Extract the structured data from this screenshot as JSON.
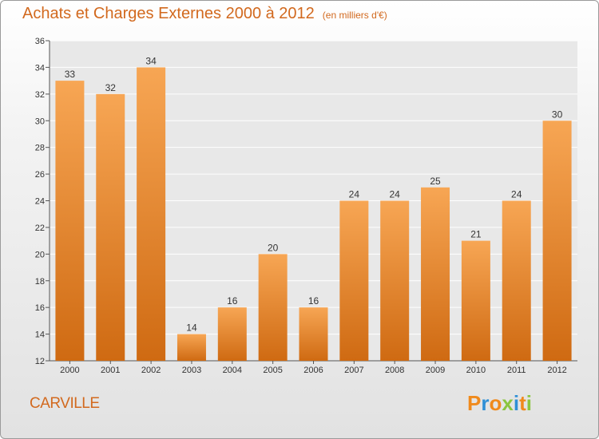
{
  "chart_data": {
    "type": "bar",
    "title": "Achats et Charges Externes 2000 à 2012",
    "subtitle": "(en milliers d'€)",
    "categories": [
      "2000",
      "2001",
      "2002",
      "2003",
      "2004",
      "2005",
      "2006",
      "2007",
      "2008",
      "2009",
      "2010",
      "2011",
      "2012"
    ],
    "values": [
      33,
      32,
      34,
      14,
      16,
      20,
      16,
      24,
      24,
      25,
      21,
      24,
      30
    ],
    "ylim": [
      12,
      36
    ],
    "yticks": [
      12,
      14,
      16,
      18,
      20,
      22,
      24,
      26,
      28,
      30,
      32,
      34,
      36
    ],
    "grid": true,
    "bar_color_top": "#f7a654",
    "bar_color_bottom": "#cf6a12"
  },
  "footer": {
    "location": "CARVILLE",
    "brand": [
      "P",
      "r",
      "o",
      "x",
      "i",
      "t",
      "i"
    ],
    "brand_colors": [
      "#f08a1c",
      "#2f8fd6",
      "#f08a1c",
      "#8bc53f",
      "#2f8fd6",
      "#f08a1c",
      "#8bc53f"
    ]
  }
}
